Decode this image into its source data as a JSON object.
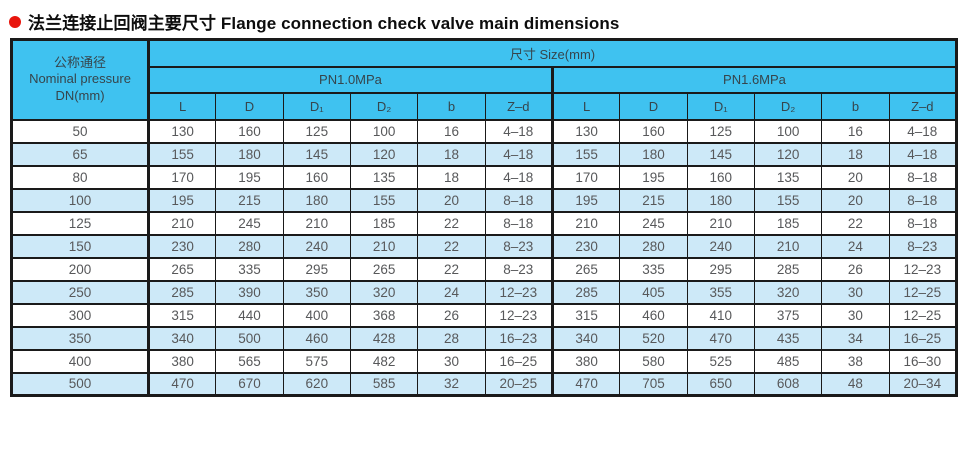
{
  "title": {
    "text": "法兰连接止回阀主要尺寸 Flange connection check valve main dimensions"
  },
  "colors": {
    "header_bg": "#3fc2f0",
    "stripe_bg": "#cde9f8",
    "border": "#1a1a1a",
    "bullet": "#e8150d",
    "data_text": "#57585a",
    "header_text": "#36454c",
    "title_text": "#0d0d0d"
  },
  "table": {
    "corner_header": {
      "line1": "公称通径",
      "line2": "Nominal pressure",
      "line3": "DN(mm)"
    },
    "size_header": "尺寸 Size(mm)",
    "groups": [
      {
        "label": "PN1.0MPa"
      },
      {
        "label": "PN1.6MPa"
      }
    ],
    "columns": [
      "L",
      "D",
      "D₁",
      "D₂",
      "b",
      "Z–d"
    ],
    "rows": [
      {
        "dn": "50",
        "pn10": [
          "130",
          "160",
          "125",
          "100",
          "16",
          "4–18"
        ],
        "pn16": [
          "130",
          "160",
          "125",
          "100",
          "16",
          "4–18"
        ]
      },
      {
        "dn": "65",
        "pn10": [
          "155",
          "180",
          "145",
          "120",
          "18",
          "4–18"
        ],
        "pn16": [
          "155",
          "180",
          "145",
          "120",
          "18",
          "4–18"
        ]
      },
      {
        "dn": "80",
        "pn10": [
          "170",
          "195",
          "160",
          "135",
          "18",
          "4–18"
        ],
        "pn16": [
          "170",
          "195",
          "160",
          "135",
          "20",
          "8–18"
        ]
      },
      {
        "dn": "100",
        "pn10": [
          "195",
          "215",
          "180",
          "155",
          "20",
          "8–18"
        ],
        "pn16": [
          "195",
          "215",
          "180",
          "155",
          "20",
          "8–18"
        ]
      },
      {
        "dn": "125",
        "pn10": [
          "210",
          "245",
          "210",
          "185",
          "22",
          "8–18"
        ],
        "pn16": [
          "210",
          "245",
          "210",
          "185",
          "22",
          "8–18"
        ]
      },
      {
        "dn": "150",
        "pn10": [
          "230",
          "280",
          "240",
          "210",
          "22",
          "8–23"
        ],
        "pn16": [
          "230",
          "280",
          "240",
          "210",
          "24",
          "8–23"
        ]
      },
      {
        "dn": "200",
        "pn10": [
          "265",
          "335",
          "295",
          "265",
          "22",
          "8–23"
        ],
        "pn16": [
          "265",
          "335",
          "295",
          "285",
          "26",
          "12–23"
        ]
      },
      {
        "dn": "250",
        "pn10": [
          "285",
          "390",
          "350",
          "320",
          "24",
          "12–23"
        ],
        "pn16": [
          "285",
          "405",
          "355",
          "320",
          "30",
          "12–25"
        ]
      },
      {
        "dn": "300",
        "pn10": [
          "315",
          "440",
          "400",
          "368",
          "26",
          "12–23"
        ],
        "pn16": [
          "315",
          "460",
          "410",
          "375",
          "30",
          "12–25"
        ]
      },
      {
        "dn": "350",
        "pn10": [
          "340",
          "500",
          "460",
          "428",
          "28",
          "16–23"
        ],
        "pn16": [
          "340",
          "520",
          "470",
          "435",
          "34",
          "16–25"
        ]
      },
      {
        "dn": "400",
        "pn10": [
          "380",
          "565",
          "575",
          "482",
          "30",
          "16–25"
        ],
        "pn16": [
          "380",
          "580",
          "525",
          "485",
          "38",
          "16–30"
        ]
      },
      {
        "dn": "500",
        "pn10": [
          "470",
          "670",
          "620",
          "585",
          "32",
          "20–25"
        ],
        "pn16": [
          "470",
          "705",
          "650",
          "608",
          "48",
          "20–34"
        ]
      }
    ]
  }
}
